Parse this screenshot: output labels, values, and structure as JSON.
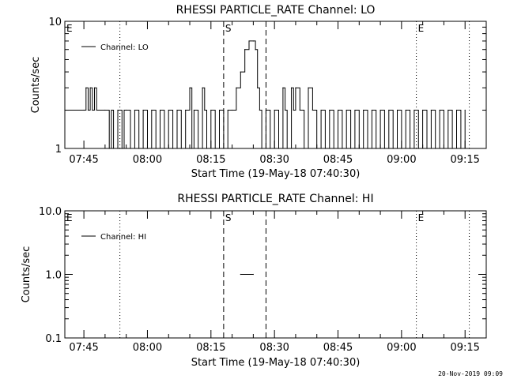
{
  "chart_data": [
    {
      "type": "line",
      "title": "RHESSI PARTICLE_RATE Channel: LO",
      "ylabel": "Counts/sec",
      "xlabel": "Start Time (19-May-18 07:40:30)",
      "y_scale": "log",
      "ylim": [
        1,
        10
      ],
      "y_ticks": [
        1,
        10
      ],
      "y_tick_labels": [
        "1",
        "10"
      ],
      "xlim": [
        "07:40:30",
        "09:20:00"
      ],
      "x_tick_labels": [
        "07:45",
        "08:00",
        "08:15",
        "08:30",
        "08:45",
        "09:00",
        "09:15"
      ],
      "grid": false,
      "legend": "top-left",
      "series": [
        {
          "name": "Channel: LO",
          "values": [
            [
              "07:40:30",
              2
            ],
            [
              "07:45:00",
              2
            ],
            [
              "07:45:30",
              3
            ],
            [
              "07:46:00",
              2
            ],
            [
              "07:46:30",
              3
            ],
            [
              "07:47:00",
              2
            ],
            [
              "07:47:30",
              3
            ],
            [
              "07:48:00",
              2
            ],
            [
              "07:50:00",
              2
            ],
            [
              "07:51:00",
              1
            ],
            [
              "07:51:30",
              2
            ],
            [
              "07:52:00",
              1
            ],
            [
              "07:53:00",
              2
            ],
            [
              "07:54:00",
              1
            ],
            [
              "07:54:30",
              2
            ],
            [
              "07:55:00",
              2
            ],
            [
              "07:56:00",
              1
            ],
            [
              "07:57:00",
              2
            ],
            [
              "07:58:00",
              1
            ],
            [
              "07:59:00",
              2
            ],
            [
              "08:00:00",
              1
            ],
            [
              "08:01:00",
              2
            ],
            [
              "08:02:00",
              1
            ],
            [
              "08:03:00",
              2
            ],
            [
              "08:04:00",
              1
            ],
            [
              "08:05:00",
              2
            ],
            [
              "08:06:00",
              1
            ],
            [
              "08:07:00",
              2
            ],
            [
              "08:08:00",
              1
            ],
            [
              "08:09:00",
              2
            ],
            [
              "08:10:00",
              3
            ],
            [
              "08:10:30",
              1
            ],
            [
              "08:11:00",
              2
            ],
            [
              "08:12:00",
              1
            ],
            [
              "08:13:00",
              3
            ],
            [
              "08:13:30",
              2
            ],
            [
              "08:14:00",
              1
            ],
            [
              "08:15:00",
              2
            ],
            [
              "08:16:00",
              1
            ],
            [
              "08:17:00",
              2
            ],
            [
              "08:18:00",
              1
            ],
            [
              "08:19:00",
              2
            ],
            [
              "08:20:00",
              2
            ],
            [
              "08:21:00",
              3
            ],
            [
              "08:22:00",
              4
            ],
            [
              "08:23:00",
              6
            ],
            [
              "08:24:00",
              7
            ],
            [
              "08:25:00",
              7
            ],
            [
              "08:25:30",
              6
            ],
            [
              "08:26:00",
              3
            ],
            [
              "08:26:30",
              2
            ],
            [
              "08:27:00",
              1
            ],
            [
              "08:28:00",
              2
            ],
            [
              "08:29:00",
              1
            ],
            [
              "08:30:00",
              2
            ],
            [
              "08:31:00",
              1
            ],
            [
              "08:32:00",
              3
            ],
            [
              "08:32:30",
              2
            ],
            [
              "08:33:00",
              1
            ],
            [
              "08:34:00",
              3
            ],
            [
              "08:34:30",
              2
            ],
            [
              "08:35:00",
              3
            ],
            [
              "08:36:00",
              2
            ],
            [
              "08:37:00",
              1
            ],
            [
              "08:38:00",
              3
            ],
            [
              "08:39:00",
              2
            ],
            [
              "08:40:00",
              1
            ],
            [
              "08:41:00",
              2
            ],
            [
              "08:42:00",
              1
            ],
            [
              "08:43:00",
              2
            ],
            [
              "08:44:00",
              1
            ],
            [
              "08:45:00",
              2
            ],
            [
              "08:46:00",
              1
            ],
            [
              "08:47:00",
              2
            ],
            [
              "08:48:00",
              1
            ],
            [
              "08:49:00",
              2
            ],
            [
              "08:50:00",
              1
            ],
            [
              "08:51:00",
              2
            ],
            [
              "08:52:00",
              1
            ],
            [
              "08:53:00",
              2
            ],
            [
              "08:54:00",
              1
            ],
            [
              "08:55:00",
              2
            ],
            [
              "08:56:00",
              1
            ],
            [
              "08:57:00",
              2
            ],
            [
              "08:58:00",
              1
            ],
            [
              "08:59:00",
              2
            ],
            [
              "09:00:00",
              1
            ],
            [
              "09:01:00",
              2
            ],
            [
              "09:02:00",
              1
            ],
            [
              "09:03:00",
              2
            ],
            [
              "09:04:00",
              1
            ],
            [
              "09:05:00",
              2
            ],
            [
              "09:06:00",
              1
            ],
            [
              "09:07:00",
              2
            ],
            [
              "09:08:00",
              1
            ],
            [
              "09:09:00",
              2
            ],
            [
              "09:10:00",
              1
            ],
            [
              "09:11:00",
              2
            ],
            [
              "09:12:00",
              1
            ],
            [
              "09:13:00",
              2
            ],
            [
              "09:14:00",
              1
            ],
            [
              "09:15:00",
              2
            ]
          ]
        }
      ],
      "annotations": [
        {
          "label": "E",
          "time": "07:40:30",
          "style": "none"
        },
        {
          "label": "",
          "time": "07:53:30",
          "style": "dotted"
        },
        {
          "label": "S",
          "time": "08:18:00",
          "style": "dashed"
        },
        {
          "label": "",
          "time": "08:28:00",
          "style": "dashed"
        },
        {
          "label": "E",
          "time": "09:03:30",
          "style": "dotted"
        },
        {
          "label": "",
          "time": "09:16:00",
          "style": "dotted"
        }
      ]
    },
    {
      "type": "line",
      "title": "RHESSI PARTICLE_RATE Channel: HI",
      "ylabel": "Counts/sec",
      "xlabel": "Start Time (19-May-18 07:40:30)",
      "y_scale": "log",
      "ylim": [
        0.1,
        10
      ],
      "y_ticks": [
        0.1,
        1,
        10
      ],
      "y_tick_labels": [
        "0.1",
        "1.0",
        "10.0"
      ],
      "xlim": [
        "07:40:30",
        "09:20:00"
      ],
      "x_tick_labels": [
        "07:45",
        "08:00",
        "08:15",
        "08:30",
        "08:45",
        "09:00",
        "09:15"
      ],
      "grid": false,
      "legend": "top-left",
      "series": [
        {
          "name": "Channel: HI",
          "values": [
            [
              "08:22:00",
              1
            ],
            [
              "08:25:00",
              1
            ]
          ]
        }
      ],
      "annotations": [
        {
          "label": "E",
          "time": "07:40:30",
          "style": "none"
        },
        {
          "label": "",
          "time": "07:53:30",
          "style": "dotted"
        },
        {
          "label": "S",
          "time": "08:18:00",
          "style": "dashed"
        },
        {
          "label": "",
          "time": "08:28:00",
          "style": "dashed"
        },
        {
          "label": "E",
          "time": "09:03:30",
          "style": "dotted"
        },
        {
          "label": "",
          "time": "09:16:00",
          "style": "dotted"
        }
      ]
    }
  ],
  "footer": "20-Nov-2019 09:09"
}
